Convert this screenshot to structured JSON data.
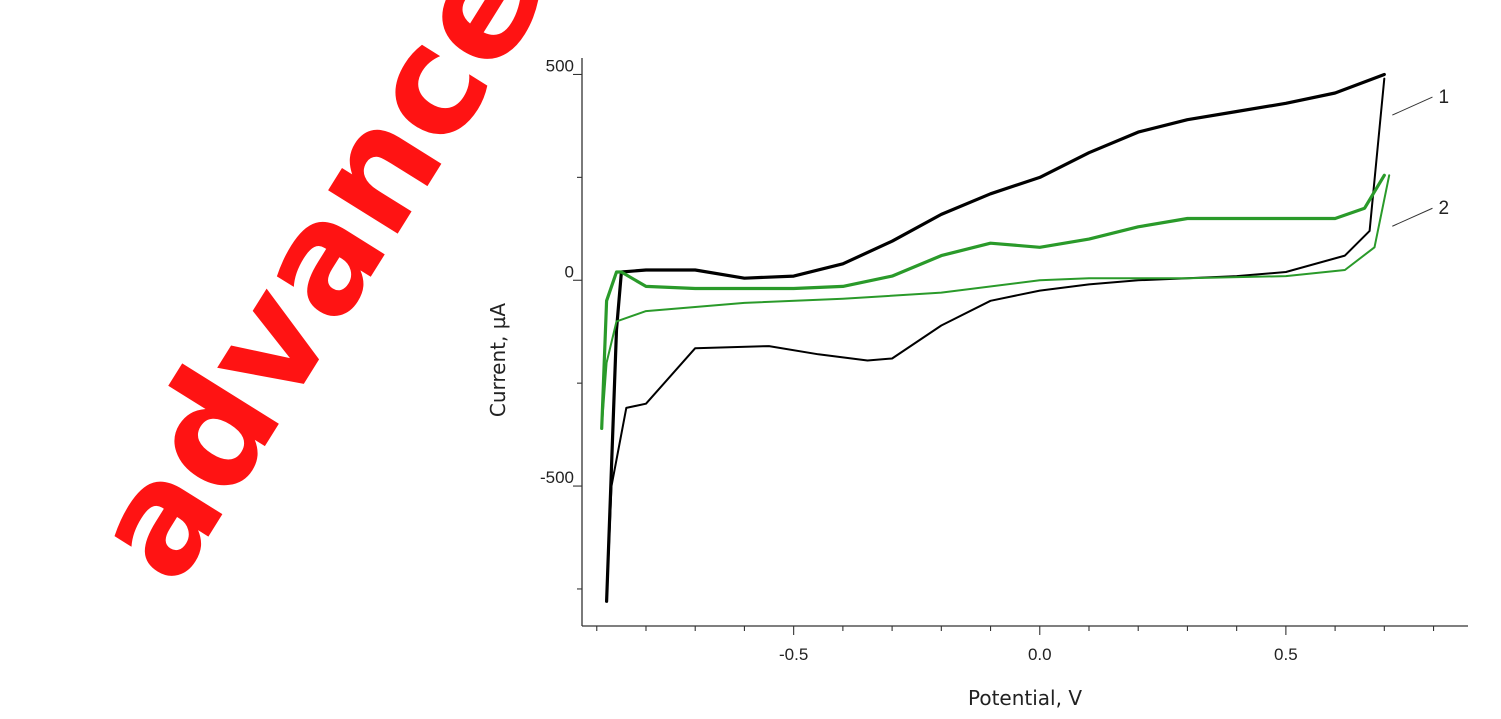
{
  "watermark": {
    "text": "advanced",
    "color": "#ff0000"
  },
  "chart_data": {
    "type": "line",
    "title": "",
    "xlabel": "Potential, V",
    "ylabel": "Current, µA",
    "xlim": [
      -0.93,
      0.87
    ],
    "ylim": [
      -840,
      540
    ],
    "x_ticks": [
      "-0.5",
      "0.0",
      "0.5"
    ],
    "y_ticks": [
      "500",
      "0",
      "-500"
    ],
    "x_tick_values": [
      -0.5,
      0.0,
      0.5
    ],
    "y_tick_values": [
      500,
      0,
      -500
    ],
    "grid": false,
    "series": [
      {
        "name": "1",
        "color": "#000000",
        "forward": {
          "x": [
            -0.88,
            -0.86,
            -0.85,
            -0.8,
            -0.7,
            -0.6,
            -0.5,
            -0.4,
            -0.3,
            -0.2,
            -0.1,
            0.0,
            0.1,
            0.2,
            0.3,
            0.4,
            0.5,
            0.6,
            0.7
          ],
          "y": [
            -780,
            -120,
            20,
            25,
            25,
            5,
            10,
            40,
            95,
            160,
            210,
            250,
            310,
            360,
            390,
            410,
            430,
            455,
            500
          ]
        },
        "reverse": {
          "x": [
            0.7,
            0.67,
            0.62,
            0.5,
            0.4,
            0.3,
            0.2,
            0.1,
            0.0,
            -0.1,
            -0.2,
            -0.3,
            -0.35,
            -0.45,
            -0.55,
            -0.7,
            -0.8,
            -0.84,
            -0.87,
            -0.88
          ],
          "y": [
            490,
            120,
            60,
            20,
            10,
            5,
            0,
            -10,
            -25,
            -50,
            -110,
            -190,
            -195,
            -180,
            -160,
            -165,
            -300,
            -310,
            -500,
            -780
          ]
        }
      },
      {
        "name": "2",
        "color": "#2a9a2a",
        "forward": {
          "x": [
            -0.89,
            -0.88,
            -0.86,
            -0.85,
            -0.8,
            -0.7,
            -0.6,
            -0.5,
            -0.4,
            -0.3,
            -0.2,
            -0.1,
            0.0,
            0.1,
            0.2,
            0.3,
            0.4,
            0.5,
            0.6,
            0.66,
            0.7
          ],
          "y": [
            -360,
            -50,
            20,
            20,
            -15,
            -20,
            -20,
            -20,
            -15,
            10,
            60,
            90,
            80,
            100,
            130,
            150,
            150,
            150,
            150,
            175,
            255
          ]
        },
        "reverse": {
          "x": [
            0.71,
            0.68,
            0.62,
            0.5,
            0.3,
            0.1,
            0.0,
            -0.2,
            -0.4,
            -0.6,
            -0.8,
            -0.86,
            -0.88,
            -0.89
          ],
          "y": [
            255,
            80,
            25,
            10,
            5,
            5,
            0,
            -30,
            -45,
            -55,
            -75,
            -100,
            -200,
            -360
          ]
        }
      }
    ],
    "labels": [
      {
        "text": "1",
        "x": 0.81,
        "y": 445
      },
      {
        "text": "2",
        "x": 0.81,
        "y": 175
      }
    ]
  }
}
